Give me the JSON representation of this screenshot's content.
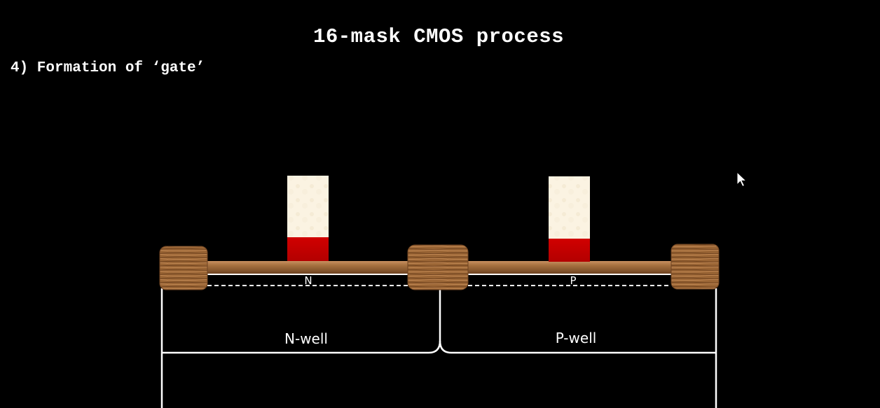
{
  "slide": {
    "title": "16-mask CMOS process",
    "step": "4) Formation of ‘gate’"
  },
  "diagram": {
    "labels": {
      "left_diffusion": "N",
      "right_diffusion": "P",
      "left_well": "N-well",
      "right_well": "P-well"
    }
  },
  "colors": {
    "background": "#000000",
    "gate_poly": "#fbf3e2",
    "gate_oxide": "#c40000",
    "field_oxide": "#9c6a3c",
    "outline": "#ffffff"
  },
  "cursor": {
    "icon": "mouse-pointer-icon"
  }
}
